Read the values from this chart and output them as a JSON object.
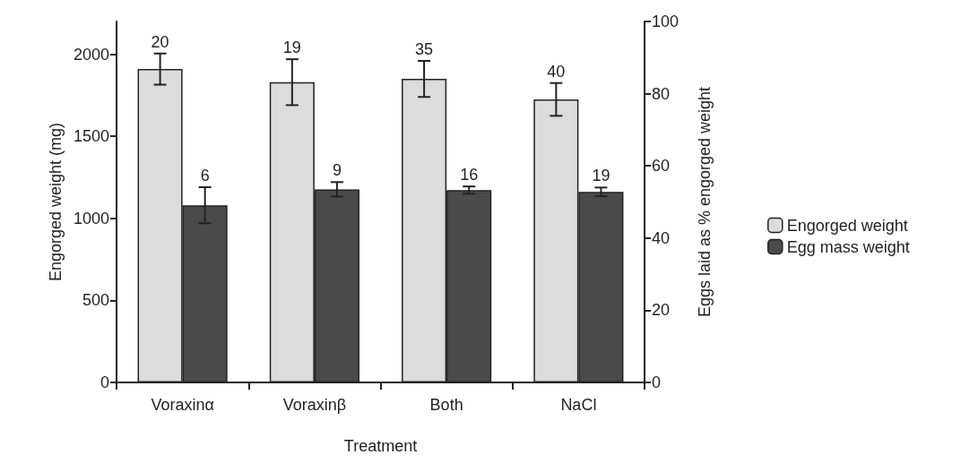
{
  "chart_data": {
    "type": "bar",
    "xlabel": "Treatment",
    "ylabel": "Engorged weight (mg)",
    "y2label": "Eggs laid as % engorged weight",
    "categories": [
      "Voraxinα",
      "Voraxinβ",
      "Both",
      "NaCl"
    ],
    "series": [
      {
        "name": "Engorged weight",
        "color": "#dcdcdc",
        "values": [
          1910,
          1830,
          1850,
          1725
        ],
        "errors": [
          95,
          140,
          110,
          100
        ]
      },
      {
        "name": "Egg mass weight",
        "color": "#4a4a4a",
        "axis": "y2",
        "values": [
          49.1,
          53.5,
          53.3,
          52.8
        ],
        "errors": [
          5,
          2,
          1,
          1.2
        ]
      }
    ],
    "annotations": [
      {
        "text": "20",
        "x": "Voraxinα",
        "y": 1910
      },
      {
        "text": "6",
        "x": "Voraxinα",
        "y": 1080
      },
      {
        "text": "19",
        "x": "Voraxinβ",
        "y": 1830
      },
      {
        "text": "9",
        "x": "Voraxinβ",
        "y": 1177
      },
      {
        "text": "35",
        "x": "Both",
        "y": 1850
      },
      {
        "text": "16",
        "x": "Both",
        "y": 1173
      },
      {
        "text": "40",
        "x": "NaCl",
        "y": 1725
      },
      {
        "text": "19",
        "x": "NaCl",
        "y": 1162
      }
    ],
    "ylim": [
      0,
      2200
    ],
    "yticks": [
      0,
      500,
      1000,
      1500,
      2000
    ],
    "y2lim": [
      0,
      100
    ],
    "y2ticks": [
      0,
      20,
      40,
      60,
      80,
      100
    ],
    "grid": false,
    "legend": "right"
  }
}
